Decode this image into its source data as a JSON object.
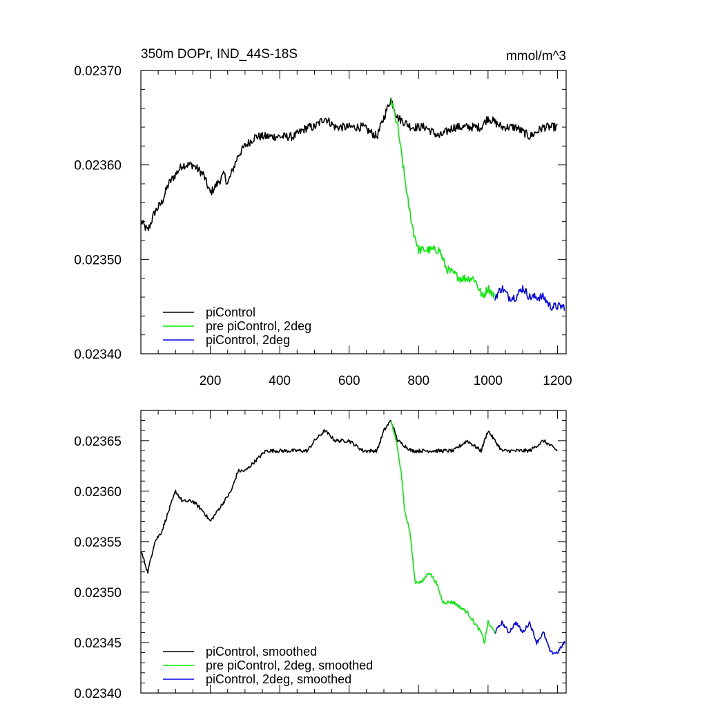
{
  "title": "350m DOPr, IND_44S-18S",
  "units": "mmol/m^3",
  "chart_data": [
    {
      "type": "line",
      "title": "350m DOPr, IND_44S-18S",
      "units": "mmol/m^3",
      "xlim": [
        0,
        1225
      ],
      "ylim": [
        0.0234,
        0.0237
      ],
      "xticks": [
        200,
        400,
        600,
        800,
        1000,
        1200
      ],
      "xtick_labels": [
        "200",
        "400",
        "600",
        "800",
        "1000",
        "1200"
      ],
      "yticks": [
        0.0234,
        0.0235,
        0.0236,
        0.0237
      ],
      "ytick_labels": [
        "0.02340",
        "0.02350",
        "0.02360",
        "0.02370"
      ],
      "noise": 4.5e-06,
      "legend": {
        "placement": "bottom-left",
        "entries": [
          "piControl",
          "pre piControl, 2deg",
          "piControl, 2deg"
        ]
      },
      "series": [
        {
          "name": "piControl",
          "color": "#000000",
          "points": [
            [
              1,
              0.02354
            ],
            [
              20,
              0.02353
            ],
            [
              40,
              0.02355
            ],
            [
              60,
              0.02356
            ],
            [
              80,
              0.02358
            ],
            [
              100,
              0.02359
            ],
            [
              120,
              0.0236
            ],
            [
              150,
              0.0236
            ],
            [
              180,
              0.02359
            ],
            [
              200,
              0.02357
            ],
            [
              220,
              0.02358
            ],
            [
              240,
              0.02359
            ],
            [
              250,
              0.02358
            ],
            [
              260,
              0.02359
            ],
            [
              280,
              0.02361
            ],
            [
              300,
              0.02362
            ],
            [
              330,
              0.02363
            ],
            [
              360,
              0.02363
            ],
            [
              400,
              0.02363
            ],
            [
              440,
              0.02363
            ],
            [
              480,
              0.02364
            ],
            [
              500,
              0.02364
            ],
            [
              530,
              0.02365
            ],
            [
              560,
              0.02364
            ],
            [
              600,
              0.02364
            ],
            [
              640,
              0.02364
            ],
            [
              680,
              0.02363
            ],
            [
              700,
              0.02365
            ],
            [
              720,
              0.02367
            ],
            [
              740,
              0.02365
            ],
            [
              780,
              0.02364
            ],
            [
              820,
              0.02364
            ],
            [
              860,
              0.02363
            ],
            [
              900,
              0.02364
            ],
            [
              940,
              0.02364
            ],
            [
              980,
              0.02364
            ],
            [
              1000,
              0.02365
            ],
            [
              1040,
              0.02364
            ],
            [
              1080,
              0.02364
            ],
            [
              1120,
              0.02363
            ],
            [
              1160,
              0.02364
            ],
            [
              1200,
              0.02364
            ]
          ]
        },
        {
          "name": "pre piControl, 2deg",
          "color": "#00ee00",
          "points": [
            [
              720,
              0.02367
            ],
            [
              740,
              0.02364
            ],
            [
              755,
              0.0236
            ],
            [
              770,
              0.02356
            ],
            [
              785,
              0.02353
            ],
            [
              800,
              0.02351
            ],
            [
              830,
              0.02351
            ],
            [
              860,
              0.02351
            ],
            [
              880,
              0.02349
            ],
            [
              920,
              0.02348
            ],
            [
              960,
              0.02348
            ],
            [
              985,
              0.02346
            ],
            [
              1000,
              0.02347
            ],
            [
              1020,
              0.02346
            ]
          ]
        },
        {
          "name": "piControl, 2deg",
          "color": "#0000ee",
          "points": [
            [
              1020,
              0.02346
            ],
            [
              1040,
              0.02347
            ],
            [
              1060,
              0.02346
            ],
            [
              1080,
              0.02346
            ],
            [
              1100,
              0.02347
            ],
            [
              1120,
              0.02346
            ],
            [
              1140,
              0.02346
            ],
            [
              1160,
              0.02346
            ],
            [
              1180,
              0.02345
            ],
            [
              1200,
              0.02345
            ],
            [
              1220,
              0.02345
            ]
          ]
        }
      ]
    },
    {
      "type": "line",
      "xlim": [
        0,
        1225
      ],
      "ylim": [
        0.0234,
        0.02368
      ],
      "xticks": [
        200,
        400,
        600,
        800,
        1000,
        1200
      ],
      "xtick_labels": [],
      "yticks": [
        0.0234,
        0.02345,
        0.0235,
        0.02355,
        0.0236,
        0.02365
      ],
      "ytick_labels": [
        "0.02340",
        "0.02345",
        "0.02350",
        "0.02355",
        "0.02360",
        "0.02365"
      ],
      "noise": 1.8e-06,
      "legend": {
        "placement": "bottom-left",
        "entries": [
          "piControl, smoothed",
          "pre piControl, 2deg, smoothed",
          "piControl, 2deg, smoothed"
        ]
      },
      "series": [
        {
          "name": "piControl, smoothed",
          "color": "#000000",
          "points": [
            [
              1,
              0.02354
            ],
            [
              20,
              0.02352
            ],
            [
              40,
              0.02355
            ],
            [
              60,
              0.02356
            ],
            [
              80,
              0.02358
            ],
            [
              100,
              0.0236
            ],
            [
              120,
              0.02359
            ],
            [
              150,
              0.02359
            ],
            [
              180,
              0.02358
            ],
            [
              200,
              0.02357
            ],
            [
              220,
              0.02358
            ],
            [
              240,
              0.02359
            ],
            [
              260,
              0.0236
            ],
            [
              280,
              0.02362
            ],
            [
              300,
              0.02362
            ],
            [
              330,
              0.02363
            ],
            [
              360,
              0.02364
            ],
            [
              400,
              0.02364
            ],
            [
              440,
              0.02364
            ],
            [
              480,
              0.02364
            ],
            [
              500,
              0.02365
            ],
            [
              530,
              0.02366
            ],
            [
              560,
              0.02365
            ],
            [
              600,
              0.02365
            ],
            [
              640,
              0.02364
            ],
            [
              680,
              0.02364
            ],
            [
              700,
              0.02366
            ],
            [
              720,
              0.02367
            ],
            [
              740,
              0.02365
            ],
            [
              780,
              0.02364
            ],
            [
              820,
              0.02364
            ],
            [
              860,
              0.02364
            ],
            [
              900,
              0.02364
            ],
            [
              940,
              0.02365
            ],
            [
              980,
              0.02364
            ],
            [
              1000,
              0.02366
            ],
            [
              1040,
              0.02364
            ],
            [
              1080,
              0.02364
            ],
            [
              1120,
              0.02364
            ],
            [
              1160,
              0.02365
            ],
            [
              1200,
              0.02364
            ]
          ]
        },
        {
          "name": "pre piControl, 2deg, smoothed",
          "color": "#00ee00",
          "points": [
            [
              720,
              0.02367
            ],
            [
              735,
              0.02365
            ],
            [
              750,
              0.02362
            ],
            [
              760,
              0.02358
            ],
            [
              775,
              0.02356
            ],
            [
              790,
              0.02351
            ],
            [
              810,
              0.02351
            ],
            [
              830,
              0.02352
            ],
            [
              850,
              0.02351
            ],
            [
              870,
              0.02349
            ],
            [
              900,
              0.02349
            ],
            [
              940,
              0.02348
            ],
            [
              960,
              0.02347
            ],
            [
              980,
              0.02346
            ],
            [
              990,
              0.02345
            ],
            [
              1000,
              0.02347
            ],
            [
              1020,
              0.02346
            ]
          ]
        },
        {
          "name": "piControl, 2deg, smoothed",
          "color": "#0000ee",
          "points": [
            [
              1020,
              0.02346
            ],
            [
              1040,
              0.02347
            ],
            [
              1060,
              0.02346
            ],
            [
              1080,
              0.02347
            ],
            [
              1100,
              0.02346
            ],
            [
              1120,
              0.02347
            ],
            [
              1140,
              0.02345
            ],
            [
              1160,
              0.02346
            ],
            [
              1180,
              0.02344
            ],
            [
              1200,
              0.02344
            ],
            [
              1220,
              0.02345
            ]
          ]
        }
      ]
    }
  ]
}
